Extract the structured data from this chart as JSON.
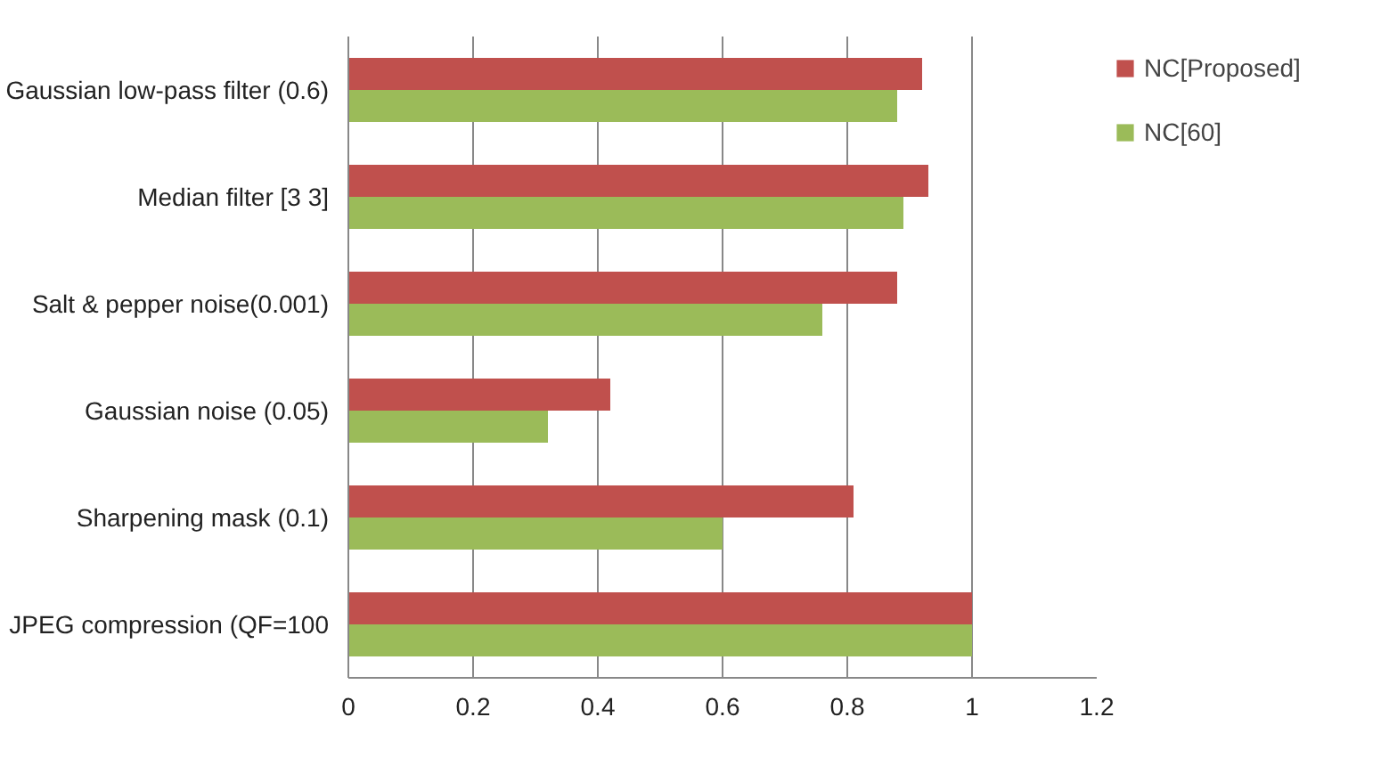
{
  "chart_data": {
    "type": "bar",
    "orientation": "horizontal",
    "categories": [
      "Gaussian low-pass filter (0.6)",
      "Median filter [3 3]",
      "Salt & pepper noise(0.001)",
      "Gaussian noise (0.05)",
      "Sharpening mask (0.1)",
      "JPEG compression (QF=100"
    ],
    "series": [
      {
        "name": "NC[Proposed]",
        "color": "#c0504d",
        "values": [
          0.92,
          0.93,
          0.88,
          0.42,
          0.81,
          1.0
        ]
      },
      {
        "name": "NC[60]",
        "color": "#9bbb59",
        "values": [
          0.88,
          0.89,
          0.76,
          0.32,
          0.6,
          1.0
        ]
      }
    ],
    "xlim": [
      0,
      1.2
    ],
    "xticks": [
      0,
      0.2,
      0.4,
      0.6,
      0.8,
      1,
      1.2
    ],
    "grid": "x",
    "legend": "right"
  }
}
